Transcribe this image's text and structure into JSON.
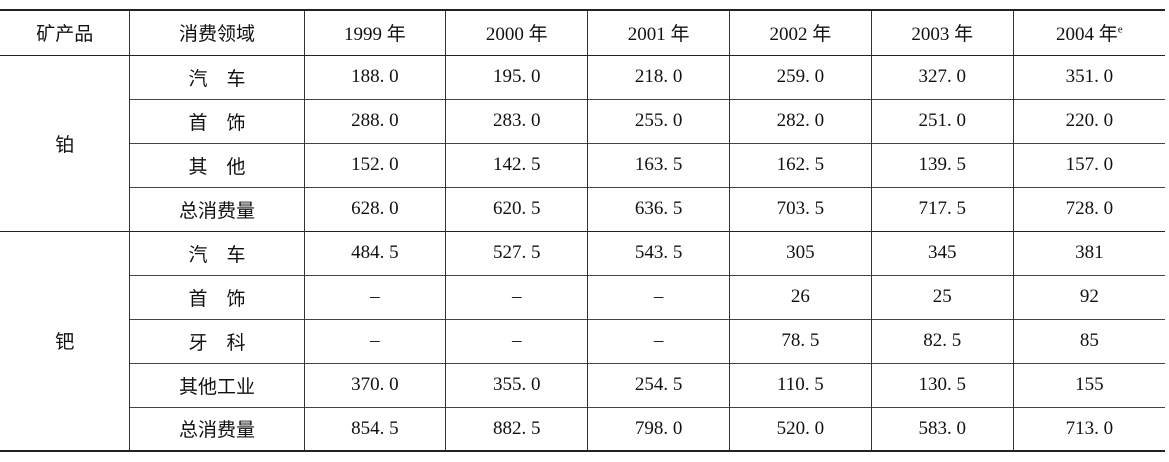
{
  "table": {
    "header": [
      "矿产品",
      "消费领域",
      "1999 年",
      "2000 年",
      "2001 年",
      "2002 年",
      "2003 年",
      "2004 年"
    ],
    "header_note": "e",
    "groups": [
      {
        "mineral": "铂",
        "rows": [
          {
            "field": "汽　车",
            "values": [
              "188. 0",
              "195. 0",
              "218. 0",
              "259. 0",
              "327. 0",
              "351. 0"
            ]
          },
          {
            "field": "首　饰",
            "values": [
              "288. 0",
              "283. 0",
              "255. 0",
              "282. 0",
              "251. 0",
              "220. 0"
            ]
          },
          {
            "field": "其　他",
            "values": [
              "152. 0",
              "142. 5",
              "163. 5",
              "162. 5",
              "139. 5",
              "157. 0"
            ]
          },
          {
            "field": "总消费量",
            "values": [
              "628. 0",
              "620. 5",
              "636. 5",
              "703. 5",
              "717. 5",
              "728. 0"
            ]
          }
        ]
      },
      {
        "mineral": "钯",
        "rows": [
          {
            "field": "汽　车",
            "values": [
              "484. 5",
              "527. 5",
              "543. 5",
              "305",
              "345",
              "381"
            ]
          },
          {
            "field": "首　饰",
            "values": [
              "–",
              "–",
              "–",
              "26",
              "25",
              "92"
            ]
          },
          {
            "field": "牙　科",
            "values": [
              "–",
              "–",
              "–",
              "78. 5",
              "82. 5",
              "85"
            ]
          },
          {
            "field": "其他工业",
            "values": [
              "370. 0",
              "355. 0",
              "254. 5",
              "110. 5",
              "130. 5",
              "155"
            ]
          },
          {
            "field": "总消费量",
            "values": [
              "854. 5",
              "882. 5",
              "798. 0",
              "520. 0",
              "583. 0",
              "713. 0"
            ]
          }
        ]
      }
    ]
  }
}
